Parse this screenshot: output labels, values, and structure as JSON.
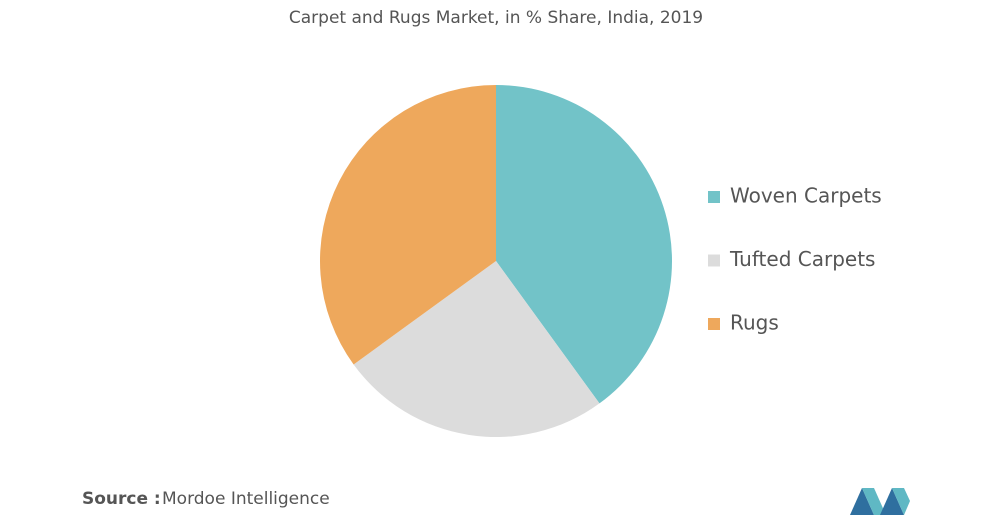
{
  "chart_data": {
    "type": "pie",
    "title": "Carpet and Rugs Market, in % Share, India, 2019",
    "categories": [
      "Woven Carpets",
      "Tufted Carpets",
      "Rugs"
    ],
    "values": [
      40,
      25,
      35
    ],
    "colors": [
      "#72c3c8",
      "#dcdcdc",
      "#eea85c"
    ],
    "legend": "right"
  },
  "footer": {
    "source_label": "Source :",
    "source": "Mordoe Intelligence"
  }
}
